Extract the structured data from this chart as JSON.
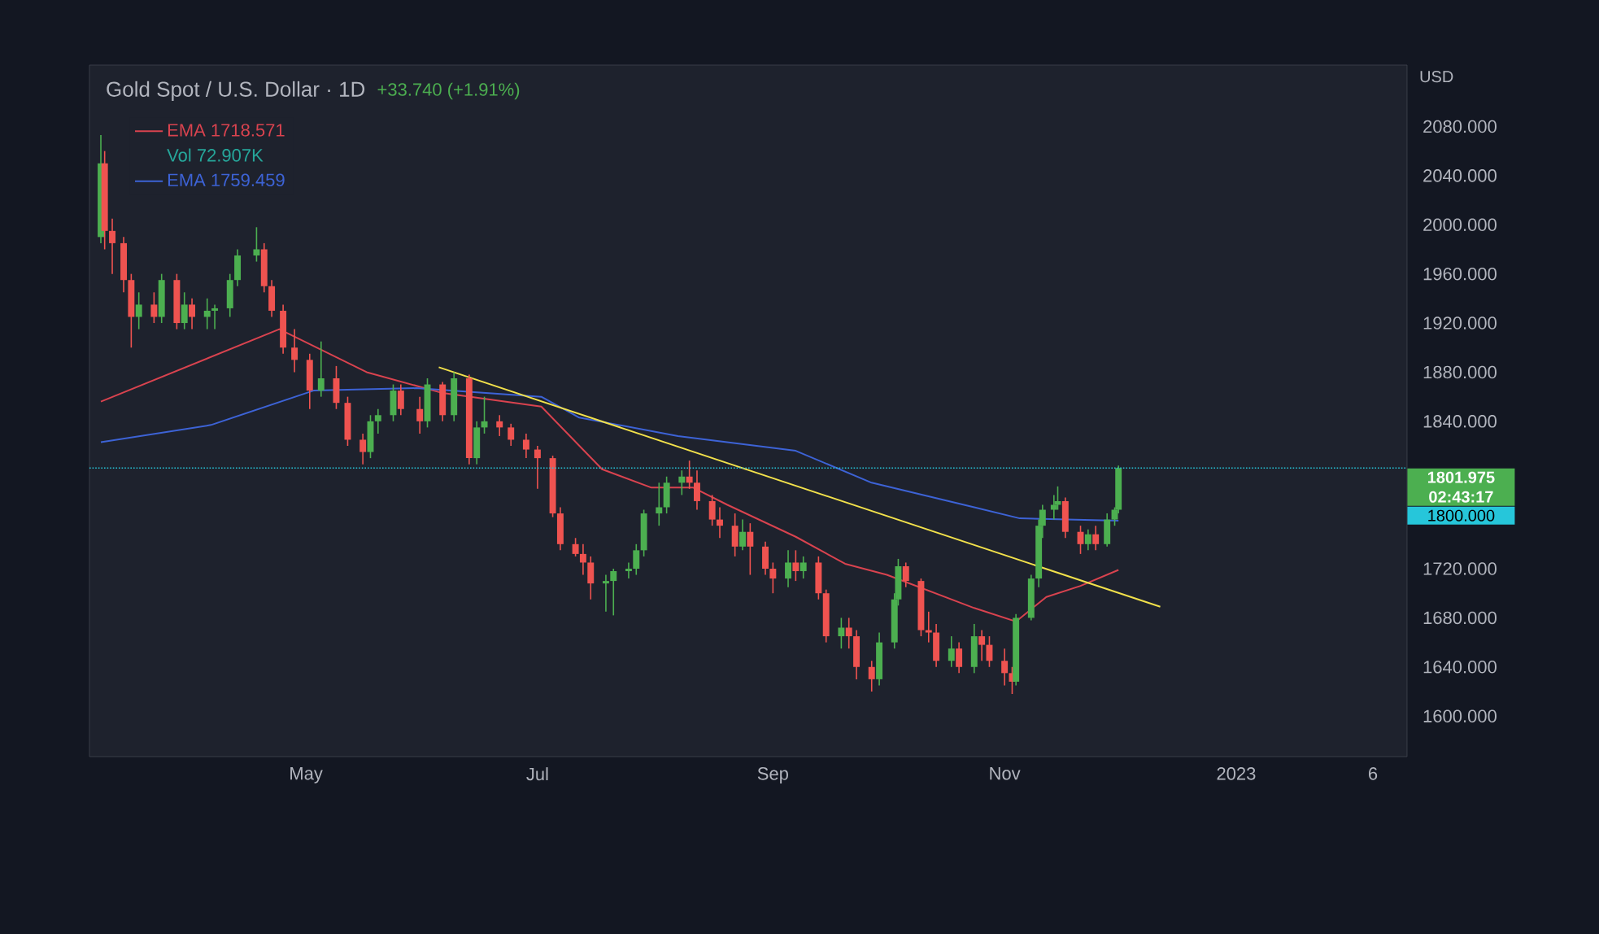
{
  "chart_data": {
    "type": "candlestick",
    "title": "Gold Spot / U.S. Dollar · 1D",
    "ylabel": "USD",
    "x": [
      "2022-03-08",
      "2022-03-09",
      "2022-03-11",
      "2022-03-14",
      "2022-03-16",
      "2022-03-18",
      "2022-03-22",
      "2022-03-24",
      "2022-03-28",
      "2022-03-30",
      "2022-04-01",
      "2022-04-05",
      "2022-04-07",
      "2022-04-11",
      "2022-04-13",
      "2022-04-18",
      "2022-04-20",
      "2022-04-22",
      "2022-04-25",
      "2022-04-28",
      "2022-05-02",
      "2022-05-05",
      "2022-05-09",
      "2022-05-12",
      "2022-05-16",
      "2022-05-18",
      "2022-05-20",
      "2022-05-24",
      "2022-05-26",
      "2022-05-31",
      "2022-06-02",
      "2022-06-06",
      "2022-06-09",
      "2022-06-13",
      "2022-06-15",
      "2022-06-17",
      "2022-06-21",
      "2022-06-24",
      "2022-06-28",
      "2022-07-01",
      "2022-07-05",
      "2022-07-07",
      "2022-07-11",
      "2022-07-13",
      "2022-07-15",
      "2022-07-19",
      "2022-07-21",
      "2022-07-25",
      "2022-07-27",
      "2022-07-29",
      "2022-08-02",
      "2022-08-04",
      "2022-08-08",
      "2022-08-10",
      "2022-08-12",
      "2022-08-16",
      "2022-08-18",
      "2022-08-22",
      "2022-08-24",
      "2022-08-26",
      "2022-08-30",
      "2022-09-01",
      "2022-09-05",
      "2022-09-07",
      "2022-09-09",
      "2022-09-13",
      "2022-09-15",
      "2022-09-19",
      "2022-09-21",
      "2022-09-23",
      "2022-09-27",
      "2022-09-29",
      "2022-10-03",
      "2022-10-04",
      "2022-10-06",
      "2022-10-10",
      "2022-10-12",
      "2022-10-14",
      "2022-10-18",
      "2022-10-20",
      "2022-10-24",
      "2022-10-26",
      "2022-10-28",
      "2022-11-01",
      "2022-11-03",
      "2022-11-04",
      "2022-11-08",
      "2022-11-10",
      "2022-11-11",
      "2022-11-14",
      "2022-11-15",
      "2022-11-17",
      "2022-11-21",
      "2022-11-23",
      "2022-11-25",
      "2022-11-28",
      "2022-11-30",
      "2022-12-01"
    ],
    "ohlc": [
      [
        1990,
        2073,
        1985,
        2050
      ],
      [
        2050,
        2060,
        1980,
        1995
      ],
      [
        1995,
        2005,
        1960,
        1985
      ],
      [
        1985,
        1990,
        1945,
        1955
      ],
      [
        1955,
        1960,
        1900,
        1925
      ],
      [
        1925,
        1945,
        1915,
        1935
      ],
      [
        1935,
        1945,
        1920,
        1925
      ],
      [
        1925,
        1960,
        1920,
        1955
      ],
      [
        1955,
        1960,
        1915,
        1920
      ],
      [
        1920,
        1945,
        1915,
        1935
      ],
      [
        1935,
        1940,
        1915,
        1925
      ],
      [
        1925,
        1940,
        1915,
        1930
      ],
      [
        1930,
        1935,
        1915,
        1932
      ],
      [
        1932,
        1960,
        1925,
        1955
      ],
      [
        1955,
        1980,
        1950,
        1975
      ],
      [
        1975,
        1998,
        1970,
        1980
      ],
      [
        1980,
        1985,
        1945,
        1950
      ],
      [
        1950,
        1955,
        1925,
        1930
      ],
      [
        1930,
        1935,
        1895,
        1900
      ],
      [
        1900,
        1915,
        1880,
        1890
      ],
      [
        1890,
        1895,
        1850,
        1865
      ],
      [
        1865,
        1905,
        1860,
        1875
      ],
      [
        1875,
        1885,
        1850,
        1855
      ],
      [
        1855,
        1860,
        1820,
        1825
      ],
      [
        1825,
        1830,
        1805,
        1815
      ],
      [
        1815,
        1845,
        1810,
        1840
      ],
      [
        1840,
        1850,
        1830,
        1845
      ],
      [
        1845,
        1870,
        1840,
        1865
      ],
      [
        1865,
        1870,
        1845,
        1850
      ],
      [
        1850,
        1860,
        1830,
        1840
      ],
      [
        1840,
        1875,
        1835,
        1870
      ],
      [
        1870,
        1872,
        1840,
        1845
      ],
      [
        1845,
        1880,
        1840,
        1875
      ],
      [
        1875,
        1878,
        1805,
        1810
      ],
      [
        1810,
        1840,
        1805,
        1835
      ],
      [
        1835,
        1860,
        1830,
        1840
      ],
      [
        1840,
        1845,
        1828,
        1835
      ],
      [
        1835,
        1838,
        1820,
        1825
      ],
      [
        1825,
        1830,
        1810,
        1817
      ],
      [
        1817,
        1820,
        1785,
        1810
      ],
      [
        1810,
        1812,
        1762,
        1765
      ],
      [
        1765,
        1770,
        1735,
        1740
      ],
      [
        1740,
        1745,
        1730,
        1732
      ],
      [
        1732,
        1740,
        1715,
        1725
      ],
      [
        1725,
        1730,
        1695,
        1708
      ],
      [
        1708,
        1715,
        1685,
        1710
      ],
      [
        1710,
        1720,
        1682,
        1718
      ],
      [
        1718,
        1725,
        1712,
        1720
      ],
      [
        1720,
        1740,
        1715,
        1735
      ],
      [
        1735,
        1768,
        1730,
        1765
      ],
      [
        1765,
        1790,
        1755,
        1770
      ],
      [
        1770,
        1795,
        1765,
        1790
      ],
      [
        1790,
        1800,
        1780,
        1795
      ],
      [
        1795,
        1808,
        1785,
        1790
      ],
      [
        1790,
        1800,
        1768,
        1775
      ],
      [
        1775,
        1780,
        1755,
        1760
      ],
      [
        1760,
        1770,
        1745,
        1755
      ],
      [
        1755,
        1765,
        1730,
        1738
      ],
      [
        1738,
        1760,
        1735,
        1750
      ],
      [
        1750,
        1757,
        1715,
        1738
      ],
      [
        1738,
        1742,
        1715,
        1720
      ],
      [
        1720,
        1725,
        1700,
        1712
      ],
      [
        1712,
        1735,
        1705,
        1725
      ],
      [
        1725,
        1735,
        1710,
        1718
      ],
      [
        1718,
        1730,
        1712,
        1725
      ],
      [
        1725,
        1730,
        1695,
        1700
      ],
      [
        1700,
        1703,
        1660,
        1665
      ],
      [
        1665,
        1680,
        1655,
        1672
      ],
      [
        1672,
        1680,
        1655,
        1665
      ],
      [
        1665,
        1670,
        1630,
        1640
      ],
      [
        1640,
        1645,
        1620,
        1630
      ],
      [
        1630,
        1668,
        1625,
        1660
      ],
      [
        1660,
        1700,
        1655,
        1695
      ],
      [
        1695,
        1728,
        1690,
        1722
      ],
      [
        1722,
        1725,
        1705,
        1710
      ],
      [
        1710,
        1712,
        1665,
        1670
      ],
      [
        1670,
        1685,
        1660,
        1668
      ],
      [
        1668,
        1675,
        1640,
        1645
      ],
      [
        1645,
        1665,
        1640,
        1655
      ],
      [
        1655,
        1660,
        1635,
        1640
      ],
      [
        1640,
        1675,
        1635,
        1665
      ],
      [
        1665,
        1670,
        1645,
        1658
      ],
      [
        1658,
        1665,
        1640,
        1645
      ],
      [
        1645,
        1655,
        1625,
        1635
      ],
      [
        1635,
        1640,
        1618,
        1628
      ],
      [
        1628,
        1683,
        1625,
        1680
      ],
      [
        1680,
        1715,
        1678,
        1712
      ],
      [
        1712,
        1760,
        1705,
        1755
      ],
      [
        1755,
        1772,
        1745,
        1768
      ],
      [
        1768,
        1780,
        1760,
        1772
      ],
      [
        1772,
        1787,
        1768,
        1775
      ],
      [
        1775,
        1778,
        1745,
        1750
      ],
      [
        1750,
        1755,
        1732,
        1740
      ],
      [
        1740,
        1752,
        1735,
        1748
      ],
      [
        1748,
        1755,
        1735,
        1740
      ],
      [
        1740,
        1765,
        1738,
        1760
      ],
      [
        1760,
        1770,
        1755,
        1768
      ],
      [
        1768,
        1804,
        1765,
        1801.975
      ]
    ],
    "colors": [
      "#4caf50",
      "#ef5350",
      "#ef5350",
      "#ef5350",
      "#ef5350",
      "#4caf50",
      "#ef5350",
      "#4caf50",
      "#ef5350",
      "#4caf50",
      "#ef5350",
      "#4caf50",
      "#4caf50",
      "#4caf50",
      "#4caf50",
      "#4caf50",
      "#ef5350",
      "#ef5350",
      "#ef5350",
      "#ef5350",
      "#ef5350",
      "#4caf50",
      "#ef5350",
      "#ef5350",
      "#ef5350",
      "#4caf50",
      "#4caf50",
      "#4caf50",
      "#ef5350",
      "#ef5350",
      "#4caf50",
      "#ef5350",
      "#4caf50",
      "#ef5350",
      "#4caf50",
      "#4caf50",
      "#ef5350",
      "#ef5350",
      "#ef5350",
      "#ef5350",
      "#ef5350",
      "#ef5350",
      "#ef5350",
      "#ef5350",
      "#ef5350",
      "#4caf50",
      "#4caf50",
      "#4caf50",
      "#4caf50",
      "#4caf50",
      "#4caf50",
      "#4caf50",
      "#4caf50",
      "#ef5350",
      "#ef5350",
      "#ef5350",
      "#ef5350",
      "#ef5350",
      "#4caf50",
      "#ef5350",
      "#ef5350",
      "#ef5350",
      "#4caf50",
      "#ef5350",
      "#4caf50",
      "#ef5350",
      "#ef5350",
      "#4caf50",
      "#ef5350",
      "#ef5350",
      "#ef5350",
      "#4caf50",
      "#4caf50",
      "#4caf50",
      "#ef5350",
      "#ef5350",
      "#ef5350",
      "#ef5350",
      "#4caf50",
      "#ef5350",
      "#4caf50",
      "#ef5350",
      "#ef5350",
      "#ef5350",
      "#ef5350",
      "#4caf50",
      "#4caf50",
      "#4caf50",
      "#4caf50",
      "#4caf50",
      "#4caf50",
      "#ef5350",
      "#ef5350",
      "#4caf50",
      "#ef5350",
      "#4caf50",
      "#4caf50",
      "#4caf50"
    ],
    "series": [
      {
        "type": "line",
        "name": "EMA 1718.571",
        "color": "#d9434f",
        "x": [
          "2022-03-08",
          "2022-04-24",
          "2022-05-17",
          "2022-06-06",
          "2022-07-02",
          "2022-07-18",
          "2022-07-31",
          "2022-08-11",
          "2022-08-20",
          "2022-09-07",
          "2022-09-20",
          "2022-10-01",
          "2022-10-24",
          "2022-11-04",
          "2022-11-12",
          "2022-11-21",
          "2022-12-01"
        ],
        "values": [
          1856,
          1915,
          1880,
          1863,
          1852,
          1801,
          1786,
          1786,
          1772,
          1746,
          1724,
          1715,
          1688,
          1677,
          1697,
          1706,
          1719
        ]
      },
      {
        "type": "line",
        "name": "EMA 1759.459",
        "color": "#3d63d6",
        "x": [
          "2022-03-08",
          "2022-04-06",
          "2022-05-03",
          "2022-05-30",
          "2022-07-02",
          "2022-07-12",
          "2022-08-07",
          "2022-09-07",
          "2022-09-27",
          "2022-10-24",
          "2022-11-05",
          "2022-12-01"
        ],
        "values": [
          1823,
          1837,
          1865,
          1867,
          1860,
          1843,
          1828,
          1816,
          1790,
          1770,
          1761,
          1759
        ]
      },
      {
        "type": "line",
        "color": "#f2e14b",
        "x": [
          "2022-06-05",
          "2022-12-12"
        ],
        "values": [
          1884,
          1689
        ]
      }
    ],
    "xlim": [
      "2022-03-05",
      "2023-02-15"
    ],
    "xticks": [
      {
        "value": "2022-05-01",
        "label": "May"
      },
      {
        "value": "2022-07-01",
        "label": "Jul"
      },
      {
        "value": "2022-09-01",
        "label": "Sep"
      },
      {
        "value": "2022-11-01",
        "label": "Nov"
      },
      {
        "value": "2023-01-01",
        "label": "2023"
      },
      {
        "value": "2023-02-06",
        "label": "6"
      }
    ],
    "ylim": [
      1567,
      2130
    ],
    "yticks": [
      {
        "value": 1600,
        "label": "1600.000"
      },
      {
        "value": 1640,
        "label": "1640.000"
      },
      {
        "value": 1680,
        "label": "1680.000"
      },
      {
        "value": 1720,
        "label": "1720.000"
      },
      {
        "value": 1840,
        "label": "1840.000"
      },
      {
        "value": 1880,
        "label": "1880.000"
      },
      {
        "value": 1920,
        "label": "1920.000"
      },
      {
        "value": 1960,
        "label": "1960.000"
      },
      {
        "value": 2000,
        "label": "2000.000"
      },
      {
        "value": 2040,
        "label": "2040.000"
      },
      {
        "value": 2080,
        "label": "2080.000"
      }
    ],
    "ref_lines": [
      {
        "axis": "y",
        "value": 1801.975,
        "label": "1801.975",
        "color": "#26c6da",
        "line_style": "dotted"
      }
    ],
    "annotations": [
      "+33.740 (+1.91%)",
      "Vol 72.907K",
      "02:43:17",
      "1800.000"
    ],
    "legend": "top left"
  }
}
